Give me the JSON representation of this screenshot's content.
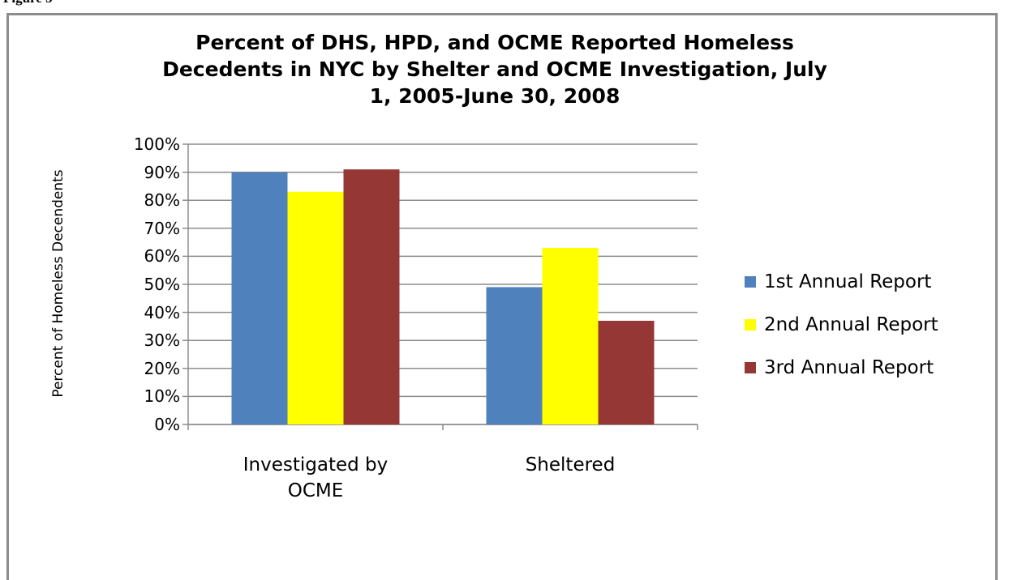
{
  "caption": "Figure 5",
  "chart_data": {
    "type": "bar",
    "title": "Percent of DHS, HPD, and OCME Reported Homeless Decedents in NYC by Shelter and OCME Investigation, July 1, 2005-June 30, 2008",
    "y_label": "Percent of Homeless Decendents",
    "categories": [
      "Investigated by OCME",
      "Sheltered"
    ],
    "series": [
      {
        "name": "1st Annual Report",
        "color": "#4f81bd",
        "values": [
          90,
          49
        ]
      },
      {
        "name": "2nd Annual Report",
        "color": "#ffff00",
        "values": [
          83,
          63
        ]
      },
      {
        "name": "3rd Annual Report",
        "color": "#953735",
        "values": [
          91,
          37
        ]
      }
    ],
    "ylim": [
      0,
      100
    ],
    "yticks": [
      {
        "value": 0,
        "label": "0%"
      },
      {
        "value": 10,
        "label": "10%"
      },
      {
        "value": 20,
        "label": "20%"
      },
      {
        "value": 30,
        "label": "30%"
      },
      {
        "value": 40,
        "label": "40%"
      },
      {
        "value": 50,
        "label": "50%"
      },
      {
        "value": 60,
        "label": "60%"
      },
      {
        "value": 70,
        "label": "70%"
      },
      {
        "value": 80,
        "label": "80%"
      },
      {
        "value": 90,
        "label": "90%"
      },
      {
        "value": 100,
        "label": "100%"
      }
    ],
    "grid": true,
    "legend": "right"
  }
}
